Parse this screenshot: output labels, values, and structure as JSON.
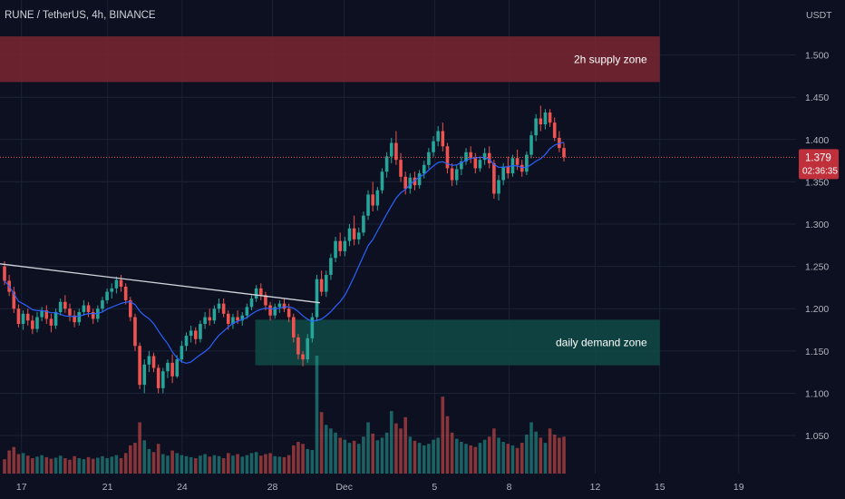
{
  "symbol_title": "RUNE / TetherUS, 4h, BINANCE",
  "currency": "USDT",
  "price_badge": {
    "value": "1.379",
    "countdown": "02:36:35",
    "color": "#c0303b"
  },
  "colors": {
    "background": "#0c1020",
    "grid": "#1b2236",
    "axis_text": "#b2b5be",
    "up": "#26a69a",
    "down": "#ef5350",
    "ma": "#2962ff",
    "trendline": "#d1d4dc"
  },
  "zones": [
    {
      "label": "2h supply zone",
      "y_low": 1.468,
      "y_high": 1.522,
      "x_start_day": -1,
      "x_end_day": 45.5,
      "color": "#7a2631"
    },
    {
      "label": "daily demand zone",
      "y_low": 1.133,
      "y_high": 1.187,
      "x_start_day": 17.3,
      "x_end_day": 45.5,
      "color": "#0f4a45"
    }
  ],
  "chart_data": {
    "type": "candlestick",
    "title": "RUNE / TetherUS, 4h, BINANCE",
    "ylabel": "USDT",
    "ylim": [
      1.005,
      1.565
    ],
    "y_ticks": [
      "1.050",
      "1.100",
      "1.150",
      "1.200",
      "1.250",
      "1.300",
      "1.350",
      "1.400",
      "1.450",
      "1.500"
    ],
    "x_tick_labels": [
      "17",
      "21",
      "24",
      "28",
      "Dec",
      "5",
      "8",
      "12",
      "15",
      "19"
    ],
    "x_tick_days": [
      1,
      7,
      12.2,
      18.5,
      23.5,
      29.8,
      35,
      41,
      45.5,
      51
    ],
    "x_range_days": [
      -0.5,
      55
    ],
    "last_price": 1.379,
    "trendline": {
      "x": [
        -0.5,
        21.8
      ],
      "y": [
        1.253,
        1.207
      ]
    },
    "candles_4h": [
      [
        1.25,
        1.256,
        1.228,
        1.233
      ],
      [
        1.233,
        1.24,
        1.215,
        1.22
      ],
      [
        1.22,
        1.226,
        1.195,
        1.2
      ],
      [
        1.2,
        1.205,
        1.178,
        1.182
      ],
      [
        1.182,
        1.198,
        1.175,
        1.194
      ],
      [
        1.194,
        1.2,
        1.18,
        1.186
      ],
      [
        1.186,
        1.192,
        1.17,
        1.176
      ],
      [
        1.176,
        1.196,
        1.172,
        1.19
      ],
      [
        1.19,
        1.202,
        1.185,
        1.198
      ],
      [
        1.198,
        1.204,
        1.182,
        1.188
      ],
      [
        1.188,
        1.194,
        1.172,
        1.18
      ],
      [
        1.18,
        1.2,
        1.176,
        1.196
      ],
      [
        1.196,
        1.212,
        1.192,
        1.208
      ],
      [
        1.208,
        1.216,
        1.195,
        1.2
      ],
      [
        1.2,
        1.206,
        1.185,
        1.192
      ],
      [
        1.192,
        1.198,
        1.178,
        1.184
      ],
      [
        1.184,
        1.2,
        1.18,
        1.196
      ],
      [
        1.196,
        1.21,
        1.192,
        1.204
      ],
      [
        1.204,
        1.208,
        1.19,
        1.196
      ],
      [
        1.196,
        1.2,
        1.182,
        1.188
      ],
      [
        1.188,
        1.204,
        1.184,
        1.2
      ],
      [
        1.2,
        1.214,
        1.196,
        1.21
      ],
      [
        1.21,
        1.224,
        1.206,
        1.22
      ],
      [
        1.22,
        1.23,
        1.212,
        1.224
      ],
      [
        1.224,
        1.238,
        1.218,
        1.234
      ],
      [
        1.234,
        1.24,
        1.22,
        1.226
      ],
      [
        1.226,
        1.23,
        1.205,
        1.21
      ],
      [
        1.21,
        1.214,
        1.185,
        1.19
      ],
      [
        1.19,
        1.194,
        1.15,
        1.156
      ],
      [
        1.156,
        1.16,
        1.105,
        1.11
      ],
      [
        1.11,
        1.14,
        1.1,
        1.134
      ],
      [
        1.134,
        1.15,
        1.125,
        1.144
      ],
      [
        1.144,
        1.148,
        1.125,
        1.13
      ],
      [
        1.13,
        1.134,
        1.1,
        1.106
      ],
      [
        1.106,
        1.13,
        1.1,
        1.126
      ],
      [
        1.126,
        1.14,
        1.118,
        1.136
      ],
      [
        1.136,
        1.146,
        1.112,
        1.12
      ],
      [
        1.12,
        1.145,
        1.118,
        1.14
      ],
      [
        1.14,
        1.162,
        1.136,
        1.156
      ],
      [
        1.156,
        1.172,
        1.15,
        1.168
      ],
      [
        1.168,
        1.18,
        1.16,
        1.174
      ],
      [
        1.174,
        1.178,
        1.158,
        1.164
      ],
      [
        1.164,
        1.186,
        1.16,
        1.182
      ],
      [
        1.182,
        1.196,
        1.176,
        1.19
      ],
      [
        1.19,
        1.2,
        1.18,
        1.186
      ],
      [
        1.186,
        1.204,
        1.182,
        1.2
      ],
      [
        1.2,
        1.212,
        1.195,
        1.206
      ],
      [
        1.206,
        1.212,
        1.19,
        1.194
      ],
      [
        1.194,
        1.198,
        1.175,
        1.182
      ],
      [
        1.182,
        1.194,
        1.176,
        1.19
      ],
      [
        1.19,
        1.198,
        1.182,
        1.186
      ],
      [
        1.186,
        1.196,
        1.18,
        1.192
      ],
      [
        1.192,
        1.206,
        1.188,
        1.202
      ],
      [
        1.202,
        1.216,
        1.198,
        1.212
      ],
      [
        1.212,
        1.228,
        1.208,
        1.224
      ],
      [
        1.224,
        1.23,
        1.21,
        1.216
      ],
      [
        1.216,
        1.22,
        1.198,
        1.204
      ],
      [
        1.204,
        1.208,
        1.186,
        1.192
      ],
      [
        1.192,
        1.206,
        1.188,
        1.202
      ],
      [
        1.202,
        1.21,
        1.195,
        1.206
      ],
      [
        1.206,
        1.212,
        1.196,
        1.2
      ],
      [
        1.2,
        1.206,
        1.184,
        1.19
      ],
      [
        1.19,
        1.194,
        1.16,
        1.166
      ],
      [
        1.166,
        1.17,
        1.14,
        1.146
      ],
      [
        1.146,
        1.15,
        1.132,
        1.14
      ],
      [
        1.14,
        1.17,
        1.136,
        1.165
      ],
      [
        1.165,
        1.195,
        1.16,
        1.19
      ],
      [
        1.19,
        1.24,
        1.185,
        1.235
      ],
      [
        1.235,
        1.245,
        1.215,
        1.22
      ],
      [
        1.22,
        1.245,
        1.214,
        1.24
      ],
      [
        1.24,
        1.265,
        1.234,
        1.26
      ],
      [
        1.26,
        1.285,
        1.255,
        1.28
      ],
      [
        1.28,
        1.29,
        1.262,
        1.268
      ],
      [
        1.268,
        1.285,
        1.262,
        1.28
      ],
      [
        1.28,
        1.3,
        1.274,
        1.295
      ],
      [
        1.295,
        1.31,
        1.275,
        1.282
      ],
      [
        1.282,
        1.296,
        1.276,
        1.29
      ],
      [
        1.29,
        1.315,
        1.286,
        1.31
      ],
      [
        1.31,
        1.34,
        1.305,
        1.335
      ],
      [
        1.335,
        1.35,
        1.315,
        1.322
      ],
      [
        1.322,
        1.344,
        1.316,
        1.34
      ],
      [
        1.34,
        1.366,
        1.336,
        1.362
      ],
      [
        1.362,
        1.385,
        1.355,
        1.38
      ],
      [
        1.38,
        1.402,
        1.372,
        1.396
      ],
      [
        1.396,
        1.41,
        1.37,
        1.376
      ],
      [
        1.376,
        1.384,
        1.35,
        1.356
      ],
      [
        1.356,
        1.362,
        1.335,
        1.342
      ],
      [
        1.342,
        1.36,
        1.336,
        1.355
      ],
      [
        1.355,
        1.362,
        1.34,
        1.346
      ],
      [
        1.346,
        1.364,
        1.342,
        1.36
      ],
      [
        1.36,
        1.375,
        1.354,
        1.37
      ],
      [
        1.37,
        1.39,
        1.365,
        1.385
      ],
      [
        1.385,
        1.404,
        1.38,
        1.398
      ],
      [
        1.398,
        1.416,
        1.392,
        1.41
      ],
      [
        1.41,
        1.42,
        1.386,
        1.392
      ],
      [
        1.392,
        1.396,
        1.36,
        1.366
      ],
      [
        1.366,
        1.372,
        1.345,
        1.352
      ],
      [
        1.352,
        1.37,
        1.346,
        1.365
      ],
      [
        1.365,
        1.38,
        1.358,
        1.374
      ],
      [
        1.374,
        1.39,
        1.37,
        1.385
      ],
      [
        1.385,
        1.392,
        1.372,
        1.378
      ],
      [
        1.378,
        1.384,
        1.36,
        1.366
      ],
      [
        1.366,
        1.38,
        1.362,
        1.376
      ],
      [
        1.376,
        1.39,
        1.37,
        1.384
      ],
      [
        1.384,
        1.392,
        1.366,
        1.372
      ],
      [
        1.372,
        1.376,
        1.33,
        1.336
      ],
      [
        1.336,
        1.358,
        1.328,
        1.352
      ],
      [
        1.352,
        1.372,
        1.346,
        1.368
      ],
      [
        1.368,
        1.38,
        1.354,
        1.36
      ],
      [
        1.36,
        1.382,
        1.356,
        1.378
      ],
      [
        1.378,
        1.388,
        1.364,
        1.37
      ],
      [
        1.37,
        1.376,
        1.356,
        1.362
      ],
      [
        1.362,
        1.386,
        1.358,
        1.382
      ],
      [
        1.382,
        1.41,
        1.378,
        1.405
      ],
      [
        1.405,
        1.43,
        1.398,
        1.425
      ],
      [
        1.425,
        1.44,
        1.41,
        1.418
      ],
      [
        1.418,
        1.436,
        1.412,
        1.432
      ],
      [
        1.432,
        1.436,
        1.415,
        1.42
      ],
      [
        1.42,
        1.426,
        1.398,
        1.402
      ],
      [
        1.402,
        1.41,
        1.385,
        1.39
      ],
      [
        1.39,
        1.396,
        1.374,
        1.379
      ]
    ],
    "volume_ticks": "none",
    "volume_scale": [
      0,
      100
    ],
    "volume": [
      28,
      45,
      52,
      38,
      40,
      35,
      30,
      33,
      36,
      32,
      29,
      31,
      35,
      30,
      27,
      34,
      30,
      28,
      32,
      29,
      31,
      34,
      30,
      33,
      36,
      30,
      40,
      55,
      60,
      100,
      65,
      48,
      42,
      58,
      38,
      35,
      45,
      40,
      36,
      34,
      32,
      30,
      35,
      38,
      33,
      36,
      34,
      30,
      40,
      35,
      38,
      33,
      36,
      40,
      42,
      35,
      38,
      40,
      34,
      33,
      32,
      36,
      55,
      62,
      58,
      48,
      46,
      230,
      120,
      95,
      88,
      80,
      70,
      66,
      60,
      64,
      58,
      72,
      100,
      78,
      65,
      70,
      80,
      122,
      98,
      88,
      110,
      72,
      64,
      60,
      55,
      58,
      66,
      70,
      150,
      112,
      80,
      68,
      62,
      58,
      55,
      52,
      60,
      66,
      72,
      88,
      70,
      62,
      58,
      55,
      50,
      60,
      76,
      100,
      82,
      70,
      60,
      88,
      76,
      70,
      72
    ]
  }
}
